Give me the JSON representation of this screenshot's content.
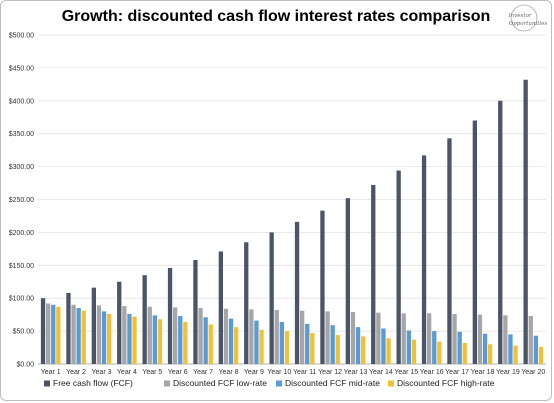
{
  "logo": {
    "name": "Investor Opportunities",
    "line1": "Investor",
    "line2": "Opportunities"
  },
  "chart_data": {
    "type": "bar",
    "title": "Growth: discounted cash flow interest rates comparison",
    "xlabel": "",
    "ylabel": "",
    "ylim": [
      0,
      500
    ],
    "yticks": [
      "$0.00",
      "$50.00",
      "$100.00",
      "$150.00",
      "$200.00",
      "$250.00",
      "$300.00",
      "$350.00",
      "$400.00",
      "$450.00",
      "$500.00"
    ],
    "grid": true,
    "legend_position": "bottom",
    "categories": [
      "Year 1",
      "Year 2",
      "Year 3",
      "Year 4",
      "Year 5",
      "Year 6",
      "Year 7",
      "Year 8",
      "Year 9",
      "Year 10",
      "Year 11",
      "Year 12",
      "Year 13",
      "Year 14",
      "Year 15",
      "Year 16",
      "Year 17",
      "Year 18",
      "Year 19",
      "Year 20"
    ],
    "series": [
      {
        "name": "Free cash flow (FCF)",
        "color": "#4a5568",
        "values": [
          100,
          108,
          116,
          125,
          135,
          146,
          158,
          171,
          185,
          200,
          216,
          233,
          252,
          272,
          294,
          317,
          343,
          370,
          400,
          432
        ]
      },
      {
        "name": "Discounted FCF low-rate",
        "color": "#a6a6a6",
        "values": [
          92,
          90,
          89,
          88,
          87,
          86,
          85,
          84,
          83,
          82,
          81,
          80,
          79,
          78,
          77,
          77,
          76,
          75,
          74,
          73
        ]
      },
      {
        "name": "Discounted FCF mid-rate",
        "color": "#5b9bd5",
        "values": [
          90,
          85,
          80,
          76,
          74,
          73,
          71,
          69,
          66,
          64,
          61,
          59,
          56,
          54,
          51,
          50,
          49,
          46,
          45,
          43
        ]
      },
      {
        "name": "Discounted FCF high-rate",
        "color": "#f2c037",
        "values": [
          87,
          81,
          76,
          72,
          68,
          64,
          60,
          56,
          52,
          50,
          47,
          44,
          42,
          39,
          37,
          34,
          32,
          30,
          28,
          26
        ]
      }
    ]
  }
}
